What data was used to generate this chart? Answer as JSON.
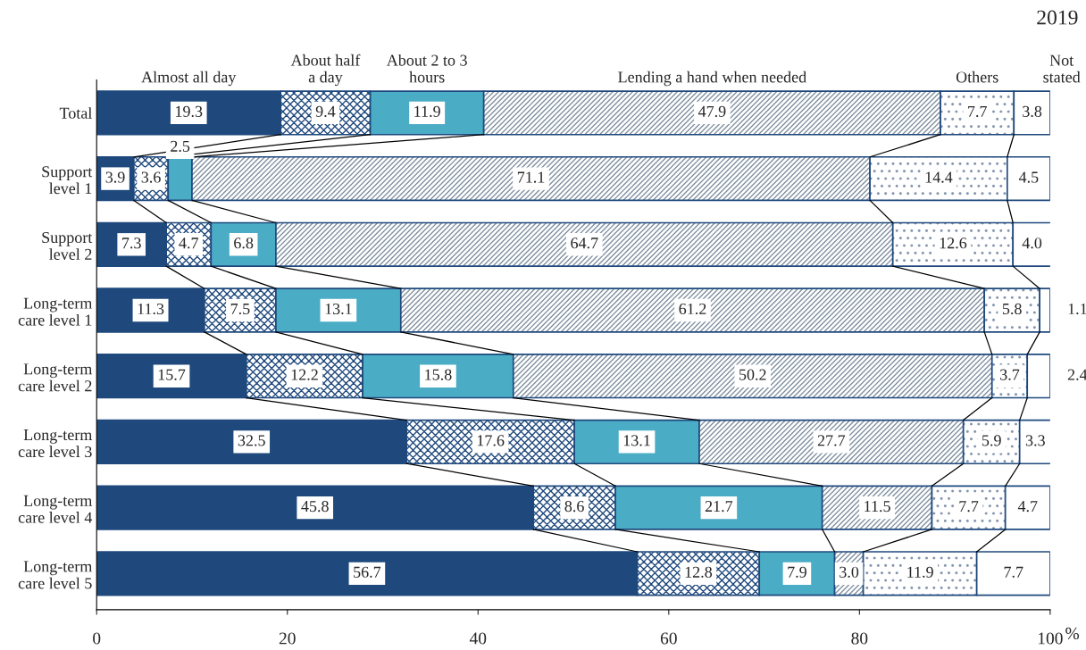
{
  "chart_data": {
    "type": "bar",
    "orientation": "horizontal",
    "stacked": true,
    "title": "2019",
    "xlabel": "%",
    "categories": [
      "Total",
      "Support\nlevel 1",
      "Support\nlevel 2",
      "Long-term\ncare level 1",
      "Long-term\ncare level 2",
      "Long-term\ncare level 3",
      "Long-term\ncare level 4",
      "Long-term\ncare level 5"
    ],
    "series": [
      {
        "name": "Almost all day",
        "color": "#1f497d",
        "values": [
          19.3,
          3.9,
          7.3,
          11.3,
          15.7,
          32.5,
          45.8,
          56.7
        ],
        "value_labels": [
          "19.3",
          "3.9",
          "7.3",
          "11.3",
          "15.7",
          "32.5",
          "45.8",
          "56.7"
        ]
      },
      {
        "name": "About half\na day",
        "color": "#1f497d",
        "values": [
          9.4,
          3.6,
          4.7,
          7.5,
          12.2,
          17.6,
          8.6,
          12.8
        ],
        "value_labels": [
          "9.4",
          "3.6",
          "4.7",
          "7.5",
          "12.2",
          "17.6",
          "8.6",
          "12.8"
        ]
      },
      {
        "name": "About 2 to 3\nhours",
        "color": "#4bacc6",
        "values": [
          11.9,
          2.5,
          6.8,
          13.1,
          15.8,
          13.1,
          21.7,
          7.9
        ],
        "value_labels": [
          "11.9",
          "2.5",
          "6.8",
          "13.1",
          "15.8",
          "13.1",
          "21.7",
          "7.9"
        ]
      },
      {
        "name": "Lending a hand when needed",
        "color": "#7f8fa0",
        "values": [
          47.9,
          71.1,
          64.7,
          61.2,
          50.2,
          27.7,
          11.5,
          3.0
        ],
        "value_labels": [
          "47.9",
          "71.1",
          "64.7",
          "61.2",
          "50.2",
          "27.7",
          "11.5",
          "3.0"
        ]
      },
      {
        "name": "Others",
        "color": "#8496b0",
        "values": [
          7.7,
          14.4,
          12.6,
          5.8,
          3.7,
          5.9,
          7.7,
          11.9
        ],
        "value_labels": [
          "7.7",
          "14.4",
          "12.6",
          "5.8",
          "3.7",
          "5.9",
          "7.7",
          "11.9"
        ]
      },
      {
        "name": "Not\nstated",
        "color": "#ffffff",
        "values": [
          3.8,
          4.5,
          4.0,
          1.1,
          2.4,
          3.3,
          4.7,
          7.7
        ],
        "value_labels": [
          "3.8",
          "4.5",
          "4.0",
          "1.1",
          "2.4",
          "3.3",
          "4.7",
          "7.7"
        ]
      }
    ],
    "xlim": [
      0,
      100
    ],
    "xticks": [
      0,
      20,
      40,
      60,
      80,
      100
    ],
    "legend": "top",
    "grid": false
  }
}
